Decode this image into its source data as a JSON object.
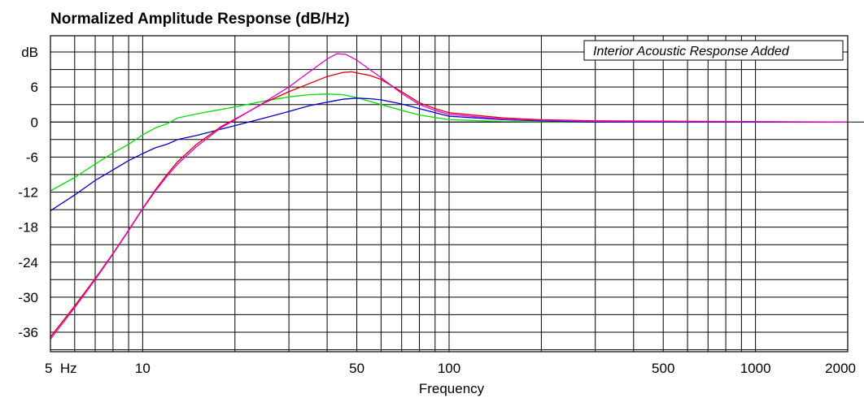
{
  "chart_data": {
    "type": "line",
    "title": "Normalized Amplitude Response (dB/Hz)",
    "xlabel": "Frequency",
    "ylabel": "dB",
    "x_scale": "log",
    "xlim": [
      5,
      2000
    ],
    "ylim": [
      -40,
      12
    ],
    "x_ticks": [
      {
        "value": 5,
        "label": "5  Hz"
      },
      {
        "value": 10,
        "label": "10"
      },
      {
        "value": 50,
        "label": "50"
      },
      {
        "value": 100,
        "label": "100"
      },
      {
        "value": 500,
        "label": "500"
      },
      {
        "value": 1000,
        "label": "1000"
      },
      {
        "value": 2000,
        "label": "2000"
      }
    ],
    "y_ticks": [
      {
        "value": 12,
        "label": "dB"
      },
      {
        "value": 6,
        "label": "6"
      },
      {
        "value": 0,
        "label": "0"
      },
      {
        "value": -6,
        "label": "-6"
      },
      {
        "value": -12,
        "label": "-12"
      },
      {
        "value": -18,
        "label": "-18"
      },
      {
        "value": -24,
        "label": "-24"
      },
      {
        "value": -30,
        "label": "-30"
      },
      {
        "value": -36,
        "label": "-36"
      }
    ],
    "grid": true,
    "legend": "none",
    "annotation": "Interior Acoustic Response Added",
    "series": [
      {
        "color": "#00dd00",
        "points": [
          [
            5,
            -11.8
          ],
          [
            6,
            -9.5
          ],
          [
            7,
            -7.2
          ],
          [
            8,
            -5.3
          ],
          [
            9,
            -3.8
          ],
          [
            10,
            -2.2
          ],
          [
            11,
            -1.0
          ],
          [
            12,
            -0.3
          ],
          [
            13,
            0.7
          ],
          [
            15,
            1.4
          ],
          [
            20,
            2.6
          ],
          [
            25,
            3.6
          ],
          [
            30,
            4.3
          ],
          [
            35,
            4.7
          ],
          [
            40,
            4.8
          ],
          [
            45,
            4.7
          ],
          [
            50,
            4.2
          ],
          [
            60,
            3.0
          ],
          [
            70,
            2.0
          ],
          [
            80,
            1.2
          ],
          [
            100,
            0.4
          ],
          [
            150,
            0.1
          ],
          [
            300,
            0.0
          ],
          [
            2000,
            0.0
          ]
        ]
      },
      {
        "color": "#0000cc",
        "points": [
          [
            5,
            -15.2
          ],
          [
            6,
            -12.5
          ],
          [
            7,
            -10.0
          ],
          [
            8,
            -8.2
          ],
          [
            9,
            -6.6
          ],
          [
            10,
            -5.4
          ],
          [
            11,
            -4.4
          ],
          [
            12,
            -3.8
          ],
          [
            13,
            -3.0
          ],
          [
            15,
            -2.3
          ],
          [
            20,
            -0.6
          ],
          [
            25,
            0.7
          ],
          [
            30,
            1.8
          ],
          [
            35,
            2.8
          ],
          [
            40,
            3.4
          ],
          [
            45,
            3.9
          ],
          [
            50,
            4.1
          ],
          [
            55,
            4.0
          ],
          [
            60,
            3.8
          ],
          [
            70,
            3.1
          ],
          [
            80,
            2.3
          ],
          [
            100,
            1.0
          ],
          [
            150,
            0.4
          ],
          [
            200,
            0.2
          ],
          [
            300,
            0.0
          ],
          [
            2000,
            0.0
          ]
        ]
      },
      {
        "color": "#dd0000",
        "points": [
          [
            5,
            -36.8
          ],
          [
            6,
            -31.5
          ],
          [
            7,
            -26.8
          ],
          [
            8,
            -22.5
          ],
          [
            9,
            -18.5
          ],
          [
            10,
            -14.8
          ],
          [
            11,
            -11.6
          ],
          [
            12,
            -9.0
          ],
          [
            13,
            -6.8
          ],
          [
            15,
            -3.8
          ],
          [
            18,
            -0.8
          ],
          [
            20,
            0.5
          ],
          [
            25,
            3.3
          ],
          [
            30,
            5.2
          ],
          [
            35,
            6.6
          ],
          [
            40,
            7.8
          ],
          [
            45,
            8.5
          ],
          [
            48,
            8.6
          ],
          [
            55,
            8.0
          ],
          [
            60,
            7.3
          ],
          [
            70,
            5.2
          ],
          [
            80,
            3.3
          ],
          [
            90,
            2.3
          ],
          [
            100,
            1.6
          ],
          [
            150,
            0.7
          ],
          [
            200,
            0.4
          ],
          [
            300,
            0.2
          ],
          [
            2000,
            0.0
          ]
        ]
      },
      {
        "color": "#dd00dd",
        "points": [
          [
            5,
            -37.2
          ],
          [
            6,
            -31.8
          ],
          [
            7,
            -27.0
          ],
          [
            8,
            -22.6
          ],
          [
            9,
            -18.6
          ],
          [
            10,
            -14.9
          ],
          [
            11,
            -11.8
          ],
          [
            12,
            -9.3
          ],
          [
            13,
            -7.2
          ],
          [
            15,
            -4.2
          ],
          [
            18,
            -1.0
          ],
          [
            20,
            0.4
          ],
          [
            25,
            3.4
          ],
          [
            30,
            6.0
          ],
          [
            35,
            8.6
          ],
          [
            40,
            10.8
          ],
          [
            43,
            11.7
          ],
          [
            46,
            11.6
          ],
          [
            50,
            10.6
          ],
          [
            60,
            7.6
          ],
          [
            70,
            4.9
          ],
          [
            80,
            3.0
          ],
          [
            90,
            2.0
          ],
          [
            100,
            1.3
          ],
          [
            150,
            0.5
          ],
          [
            200,
            0.3
          ],
          [
            300,
            0.1
          ],
          [
            2000,
            0.0
          ]
        ]
      }
    ]
  }
}
